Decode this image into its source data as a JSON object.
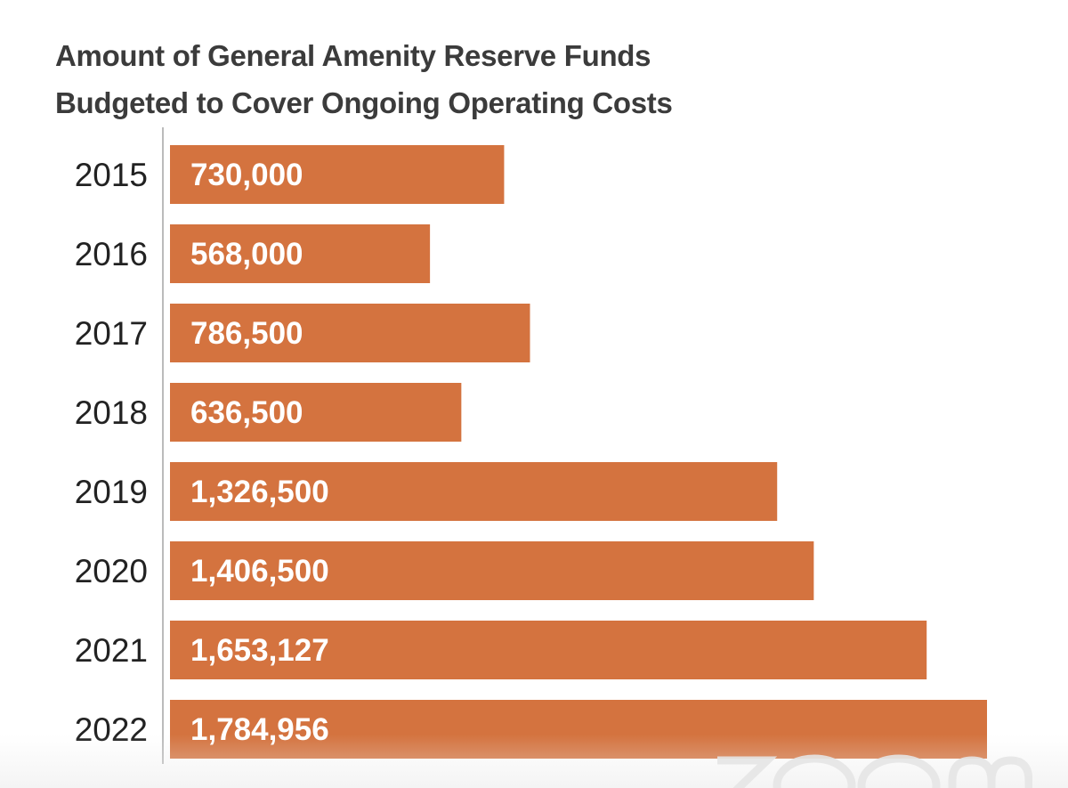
{
  "chart_data": {
    "type": "bar",
    "orientation": "horizontal",
    "title_lines": [
      "Amount of General Amenity Reserve Funds",
      "Budgeted to Cover Ongoing Operating Costs"
    ],
    "categories": [
      "2015",
      "2016",
      "2017",
      "2018",
      "2019",
      "2020",
      "2021",
      "2022"
    ],
    "values": [
      730000,
      568000,
      786500,
      636500,
      1326500,
      1406500,
      1653127,
      1784956
    ],
    "data_labels": [
      "730,000",
      "568,000",
      "786,500",
      "636,500",
      "1,326,500",
      "1,406,500",
      "1,653,127",
      "1,784,956"
    ],
    "xlim": [
      0,
      1784956
    ],
    "grid": false,
    "legend": "none",
    "colors": {
      "bar": "#d4733f",
      "axis": "#bbbbbb",
      "category_text": "#222222",
      "value_text": "#ffffff",
      "title_text": "#3b3b3b"
    }
  },
  "watermark": {
    "icon": "zoom-logo-icon"
  }
}
